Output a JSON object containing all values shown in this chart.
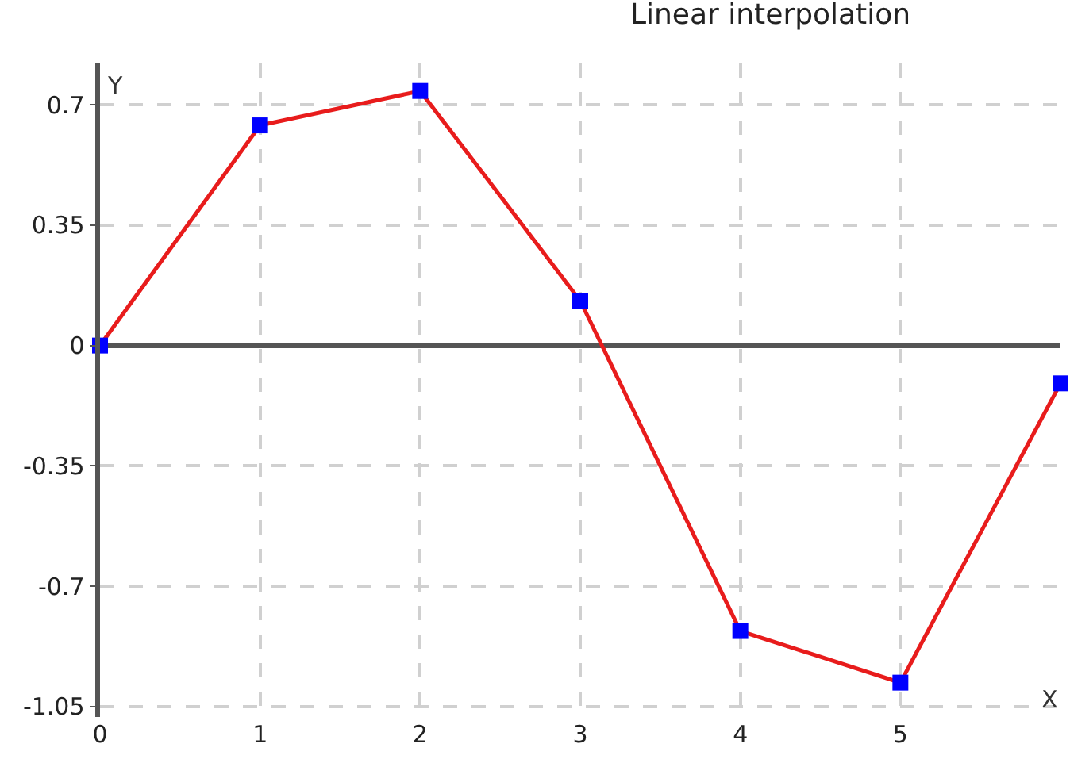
{
  "chart_data": {
    "type": "line",
    "title": "Linear interpolation",
    "xlabel": "X",
    "ylabel": "Y",
    "x": [
      0,
      1,
      2,
      3,
      4,
      5,
      6
    ],
    "series": [
      {
        "color": "#e81c1c",
        "values": [
          0,
          0.64,
          0.74,
          0.13,
          -0.83,
          -0.98,
          -0.11
        ]
      }
    ],
    "marker": "square",
    "line_style": "solid",
    "xlim": [
      0,
      6
    ],
    "xticks": [
      0,
      1,
      2,
      3,
      4,
      5
    ],
    "ylim": [
      -1.08,
      0.82
    ],
    "yticks": [
      0.7,
      0.35,
      0,
      -0.35,
      -0.7,
      -1.05
    ],
    "grid": true,
    "legend": false
  }
}
